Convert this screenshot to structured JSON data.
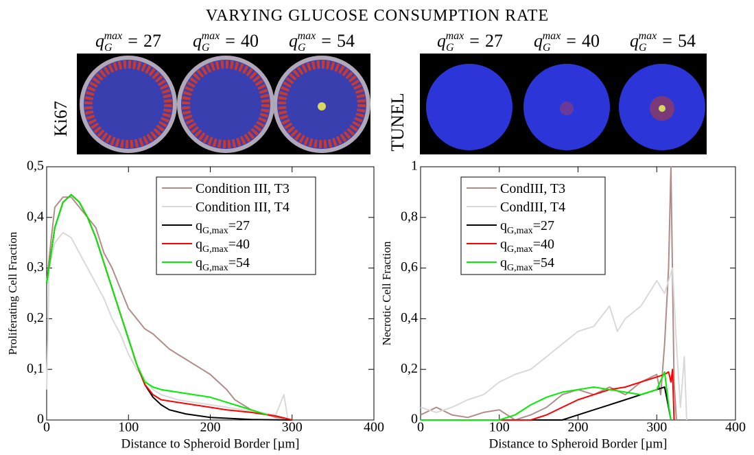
{
  "title": "VARYING GLUCOSE CONSUMPTION RATE",
  "images": [
    {
      "stain": "Ki67",
      "symbol": {
        "base": "q",
        "sub": "G",
        "sup": "max",
        "operator": "="
      },
      "values": [
        27,
        40,
        54
      ]
    },
    {
      "stain": "TUNEL",
      "symbol": {
        "base": "q",
        "sub": "G",
        "sup": "max",
        "operator": "="
      },
      "values": [
        27,
        40,
        54
      ]
    }
  ],
  "chart_data": [
    {
      "type": "line",
      "xlabel": "Distance to Spheroid Border [µm]",
      "ylabel": "Proliferating Cell Fraction",
      "xlim": [
        0,
        400
      ],
      "xticks": [
        0,
        100,
        200,
        300,
        400
      ],
      "ylim": [
        0,
        0.5
      ],
      "yticks": [
        0,
        {
          "value": 0.1,
          "label": "0,1"
        },
        {
          "value": 0.2,
          "label": "0,2"
        },
        {
          "value": 0.3,
          "label": "0,3"
        },
        {
          "value": 0.4,
          "label": "0,4"
        },
        {
          "value": 0.5,
          "label": "0,5"
        }
      ],
      "series": [
        {
          "name": "Condition III, T3",
          "color": "#b08c88",
          "x": [
            0,
            5,
            10,
            20,
            30,
            40,
            50,
            60,
            70,
            80,
            90,
            100,
            110,
            120,
            130,
            140,
            150,
            160,
            170,
            180,
            190,
            200,
            210,
            220,
            230,
            240,
            250,
            260,
            270,
            280,
            290
          ],
          "values": [
            0.27,
            0.35,
            0.42,
            0.44,
            0.44,
            0.42,
            0.4,
            0.38,
            0.33,
            0.3,
            0.26,
            0.22,
            0.2,
            0.18,
            0.17,
            0.155,
            0.14,
            0.13,
            0.12,
            0.11,
            0.1,
            0.09,
            0.075,
            0.06,
            0.04,
            0.03,
            0.02,
            0.015,
            0.01,
            0.005,
            0.003
          ]
        },
        {
          "name": "Condition III, T4",
          "color": "#d9d9d9",
          "x": [
            0,
            3,
            10,
            20,
            30,
            40,
            50,
            60,
            70,
            80,
            90,
            100,
            110,
            120,
            130,
            140,
            150,
            160,
            180,
            200,
            220,
            240,
            260,
            280,
            290,
            295
          ],
          "values": [
            0.06,
            0.3,
            0.35,
            0.37,
            0.36,
            0.33,
            0.3,
            0.27,
            0.24,
            0.2,
            0.17,
            0.13,
            0.1,
            0.08,
            0.06,
            0.05,
            0.045,
            0.04,
            0.035,
            0.03,
            0.025,
            0.02,
            0.015,
            0.01,
            0.05,
            0.0
          ]
        },
        {
          "name": [
            "q",
            "G,max",
            "=27"
          ],
          "color": "#000000",
          "x": [
            0,
            10,
            20,
            30,
            40,
            50,
            60,
            70,
            80,
            90,
            100,
            110,
            120,
            130,
            140,
            150,
            170,
            200,
            250,
            300
          ],
          "values": [
            0.27,
            0.38,
            0.43,
            0.445,
            0.43,
            0.4,
            0.36,
            0.31,
            0.26,
            0.21,
            0.16,
            0.11,
            0.07,
            0.045,
            0.03,
            0.02,
            0.012,
            0.005,
            0.001,
            0
          ]
        },
        {
          "name": [
            "q",
            "G,max",
            "=40"
          ],
          "color": "#ff0000",
          "x": [
            0,
            10,
            20,
            30,
            40,
            50,
            60,
            70,
            80,
            90,
            100,
            110,
            120,
            130,
            140,
            160,
            180,
            200,
            220,
            250,
            280,
            290,
            300
          ],
          "values": [
            0.27,
            0.38,
            0.43,
            0.445,
            0.43,
            0.4,
            0.36,
            0.31,
            0.26,
            0.21,
            0.16,
            0.11,
            0.07,
            0.05,
            0.04,
            0.035,
            0.03,
            0.025,
            0.02,
            0.015,
            0.008,
            0.004,
            0
          ]
        },
        {
          "name": [
            "q",
            "G,max",
            "=54"
          ],
          "color": "#00ee00",
          "x": [
            0,
            10,
            20,
            30,
            40,
            50,
            60,
            70,
            80,
            90,
            100,
            110,
            120,
            130,
            140,
            160,
            180,
            200,
            220,
            240,
            260,
            270
          ],
          "values": [
            0.27,
            0.38,
            0.43,
            0.445,
            0.43,
            0.4,
            0.36,
            0.31,
            0.26,
            0.21,
            0.16,
            0.11,
            0.075,
            0.065,
            0.06,
            0.055,
            0.05,
            0.045,
            0.035,
            0.025,
            0.015,
            0.01
          ]
        }
      ]
    },
    {
      "type": "line",
      "xlabel": "Distance to Spheroid Border [µm]",
      "ylabel": "Necrotic Cell Fraction",
      "xlim": [
        0,
        400
      ],
      "xticks": [
        0,
        100,
        200,
        300,
        400
      ],
      "ylim": [
        0,
        1
      ],
      "yticks": [
        0,
        {
          "value": 0.2,
          "label": "0,2"
        },
        {
          "value": 0.4,
          "label": "0,4"
        },
        {
          "value": 0.6,
          "label": "0,6"
        },
        {
          "value": 0.8,
          "label": "0,8"
        },
        1
      ],
      "series": [
        {
          "name": "CondIII, T3",
          "color": "#b08c88",
          "x": [
            0,
            20,
            40,
            60,
            80,
            100,
            120,
            140,
            160,
            180,
            200,
            220,
            240,
            260,
            280,
            300,
            305,
            310,
            315,
            318,
            322,
            325
          ],
          "values": [
            0.02,
            0.05,
            0.02,
            0.01,
            0.03,
            0.04,
            0.0,
            0.02,
            0.05,
            0.1,
            0.12,
            0.1,
            0.13,
            0.1,
            0.15,
            0.18,
            0.1,
            0.3,
            0.6,
            1.0,
            0.15,
            0
          ]
        },
        {
          "name": "CondIII, T4",
          "color": "#d9d9d9",
          "x": [
            0,
            20,
            40,
            60,
            80,
            100,
            120,
            140,
            160,
            180,
            200,
            220,
            240,
            250,
            260,
            280,
            290,
            300,
            310,
            320,
            325,
            330,
            335,
            338
          ],
          "values": [
            0.05,
            0.03,
            0.05,
            0.08,
            0.1,
            0.15,
            0.18,
            0.2,
            0.25,
            0.3,
            0.35,
            0.37,
            0.45,
            0.35,
            0.4,
            0.45,
            0.5,
            0.55,
            0.5,
            0.6,
            0.3,
            0.05,
            0.25,
            0
          ]
        },
        {
          "name": [
            "q",
            "G,max",
            "=27"
          ],
          "color": "#000000",
          "x": [
            0,
            180,
            200,
            220,
            240,
            260,
            280,
            300,
            310,
            315,
            318
          ],
          "values": [
            0,
            0,
            0.02,
            0.04,
            0.06,
            0.08,
            0.1,
            0.12,
            0.13,
            0.05,
            0
          ]
        },
        {
          "name": [
            "q",
            "G,max",
            "=40"
          ],
          "color": "#ff0000",
          "x": [
            0,
            140,
            160,
            180,
            200,
            220,
            240,
            260,
            280,
            300,
            310,
            315,
            318,
            320,
            322
          ],
          "values": [
            0,
            0,
            0.02,
            0.05,
            0.08,
            0.1,
            0.12,
            0.13,
            0.15,
            0.17,
            0.18,
            0.19,
            0.15,
            0.2,
            0
          ]
        },
        {
          "name": [
            "q",
            "G,max",
            "=54"
          ],
          "color": "#00ee00",
          "x": [
            0,
            100,
            120,
            140,
            160,
            180,
            200,
            220,
            240,
            260,
            280,
            300,
            310,
            315,
            318
          ],
          "values": [
            0,
            0,
            0.02,
            0.06,
            0.09,
            0.11,
            0.12,
            0.13,
            0.12,
            0.11,
            0.1,
            0.12,
            0.19,
            0.06,
            0
          ]
        }
      ]
    }
  ]
}
